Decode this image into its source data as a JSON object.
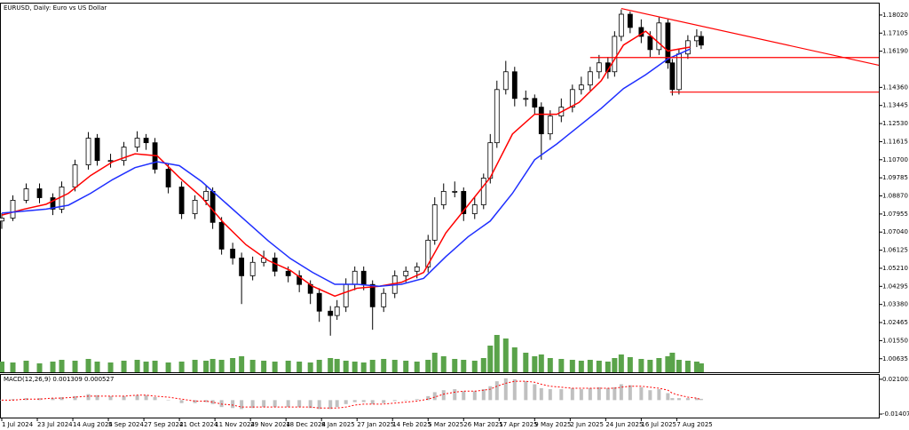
{
  "chart_data": [
    {
      "type": "candlestick",
      "title": "EURUSD, Daily:  Euro vs US Dollar",
      "x": [
        0,
        5,
        11,
        17,
        23,
        27,
        33,
        39,
        43,
        49,
        55,
        61,
        65,
        69,
        75,
        81,
        87,
        92,
        95,
        99,
        104,
        108,
        113,
        118,
        123,
        129,
        134,
        139,
        143,
        148,
        151,
        155,
        159,
        163,
        167,
        172,
        177,
        182,
        187,
        192,
        195,
        199,
        204,
        208,
        213,
        217,
        220,
        223,
        227,
        231,
        236,
        240,
        243,
        247,
        252,
        257,
        261,
        265,
        269,
        273,
        276,
        279,
        283,
        288,
        292,
        296,
        300,
        302,
        305,
        309,
        313,
        315
      ],
      "open": [
        1.076,
        1.0775,
        1.0865,
        1.0923,
        1.0878,
        1.082,
        1.0932,
        1.1044,
        1.1179,
        1.1066,
        1.1066,
        1.1134,
        1.1179,
        1.1156,
        1.1022,
        1.0932,
        1.0797,
        1.0865,
        1.091,
        1.0753,
        1.0618,
        1.0573,
        1.0483,
        1.0551,
        1.0573,
        1.0506,
        1.0483,
        1.0439,
        1.0394,
        1.0304,
        1.0282,
        1.0326,
        1.0439,
        1.0506,
        1.0439,
        1.0326,
        1.0394,
        1.0483,
        1.0506,
        1.0528,
        1.0663,
        1.0842,
        1.091,
        1.091,
        1.0797,
        1.0842,
        1.0977,
        1.1156,
        1.1425,
        1.1515,
        1.138,
        1.138,
        1.1336,
        1.1201,
        1.1291,
        1.1336,
        1.1425,
        1.1448,
        1.1515,
        1.156,
        1.1515,
        1.1694,
        1.1806,
        1.1739,
        1.1694,
        1.1627,
        1.1762,
        1.156,
        1.1425,
        1.1605,
        1.1672,
        1.1694
      ],
      "high": [
        1.08,
        1.089,
        1.095,
        1.095,
        1.09,
        1.096,
        1.107,
        1.121,
        1.12,
        1.11,
        1.116,
        1.1214,
        1.12,
        1.118,
        1.105,
        1.096,
        1.089,
        1.094,
        1.093,
        1.078,
        1.065,
        1.06,
        1.058,
        1.061,
        1.06,
        1.053,
        1.051,
        1.046,
        1.042,
        1.033,
        1.036,
        1.047,
        1.053,
        1.053,
        1.046,
        1.042,
        1.051,
        1.053,
        1.055,
        1.069,
        1.088,
        1.095,
        1.096,
        1.093,
        1.088,
        1.1,
        1.12,
        1.147,
        1.157,
        1.154,
        1.142,
        1.14,
        1.136,
        1.132,
        1.138,
        1.145,
        1.149,
        1.154,
        1.16,
        1.159,
        1.172,
        1.183,
        1.182,
        1.178,
        1.172,
        1.179,
        1.178,
        1.158,
        1.163,
        1.17,
        1.173,
        1.172
      ],
      "low": [
        1.072,
        1.076,
        1.085,
        1.085,
        1.079,
        1.08,
        1.091,
        1.102,
        1.104,
        1.103,
        1.104,
        1.111,
        1.112,
        1.1,
        1.09,
        1.077,
        1.077,
        1.084,
        1.072,
        1.059,
        1.054,
        1.034,
        1.046,
        1.053,
        1.048,
        1.045,
        1.04,
        1.034,
        1.025,
        1.018,
        1.026,
        1.03,
        1.041,
        1.041,
        1.021,
        1.03,
        1.037,
        1.045,
        1.047,
        1.05,
        1.064,
        1.082,
        1.088,
        1.076,
        1.077,
        1.082,
        1.095,
        1.113,
        1.14,
        1.134,
        1.134,
        1.13,
        1.107,
        1.117,
        1.126,
        1.131,
        1.14,
        1.142,
        1.148,
        1.148,
        1.149,
        1.167,
        1.171,
        1.166,
        1.159,
        1.16,
        1.153,
        1.1395,
        1.14,
        1.158,
        1.164,
        1.163
      ],
      "close": [
        1.0775,
        1.0865,
        1.0923,
        1.0878,
        1.082,
        1.0932,
        1.1044,
        1.1179,
        1.1066,
        1.1066,
        1.1134,
        1.1179,
        1.1156,
        1.1022,
        1.0932,
        1.0797,
        1.0865,
        1.091,
        1.0753,
        1.0618,
        1.0573,
        1.0483,
        1.0551,
        1.0573,
        1.0506,
        1.0483,
        1.0439,
        1.0394,
        1.0304,
        1.0282,
        1.0326,
        1.0439,
        1.0506,
        1.0439,
        1.0326,
        1.0394,
        1.0483,
        1.0506,
        1.0528,
        1.0663,
        1.0842,
        1.091,
        1.091,
        1.0797,
        1.0842,
        1.0977,
        1.1156,
        1.1425,
        1.1515,
        1.138,
        1.138,
        1.1336,
        1.1201,
        1.1291,
        1.1336,
        1.1425,
        1.1448,
        1.1515,
        1.156,
        1.1515,
        1.1694,
        1.1806,
        1.1739,
        1.1694,
        1.1627,
        1.1762,
        1.156,
        1.1425,
        1.1605,
        1.1672,
        1.1694,
        1.165
      ],
      "volume": [
        12,
        11,
        13,
        10,
        12,
        14,
        13,
        15,
        12,
        11,
        13,
        14,
        12,
        13,
        11,
        12,
        14,
        13,
        15,
        14,
        16,
        18,
        14,
        13,
        12,
        13,
        12,
        11,
        14,
        16,
        15,
        13,
        12,
        11,
        14,
        15,
        14,
        13,
        12,
        14,
        22,
        18,
        15,
        14,
        13,
        16,
        30,
        42,
        38,
        28,
        22,
        18,
        20,
        16,
        15,
        14,
        13,
        14,
        13,
        12,
        16,
        20,
        17,
        15,
        14,
        16,
        18,
        22,
        14,
        13,
        12,
        10
      ],
      "volume_lim": [
        0,
        100
      ],
      "volume_color": "#5aa34a",
      "series": [
        {
          "color": "#ff0000",
          "x": [
            0,
            10,
            20,
            30,
            40,
            50,
            60,
            70,
            80,
            90,
            100,
            110,
            120,
            130,
            140,
            150,
            160,
            170,
            180,
            190,
            200,
            210,
            220,
            230,
            240,
            250,
            260,
            270,
            280,
            290,
            300,
            310
          ],
          "values": [
            1.079,
            1.082,
            1.0845,
            1.09,
            1.099,
            1.106,
            1.11,
            1.109,
            1.098,
            1.088,
            1.075,
            1.064,
            1.056,
            1.051,
            1.043,
            1.038,
            1.042,
            1.043,
            1.045,
            1.05,
            1.07,
            1.084,
            1.098,
            1.12,
            1.13,
            1.13,
            1.136,
            1.147,
            1.165,
            1.172,
            1.162,
            1.164
          ]
        },
        {
          "color": "#1f2fff",
          "x": [
            0,
            10,
            20,
            30,
            40,
            50,
            60,
            70,
            80,
            90,
            100,
            110,
            120,
            130,
            140,
            150,
            160,
            170,
            180,
            190,
            200,
            210,
            220,
            230,
            240,
            250,
            260,
            270,
            280,
            290,
            300,
            310
          ],
          "values": [
            1.08,
            1.081,
            1.082,
            1.084,
            1.09,
            1.097,
            1.103,
            1.106,
            1.104,
            1.096,
            1.086,
            1.076,
            1.066,
            1.057,
            1.05,
            1.044,
            1.044,
            1.043,
            1.044,
            1.047,
            1.058,
            1.068,
            1.076,
            1.09,
            1.107,
            1.115,
            1.124,
            1.133,
            1.143,
            1.15,
            1.158,
            1.163
          ]
        }
      ],
      "lines": [
        {
          "color": "#ff0000",
          "x": [
            279,
            395
          ],
          "values": [
            1.1835,
            1.1548
          ]
        },
        {
          "color": "#ff0000",
          "x": [
            265,
            395
          ],
          "values": [
            1.1587,
            1.1587
          ]
        },
        {
          "color": "#ff0000",
          "x": [
            301,
            395
          ],
          "values": [
            1.1412,
            1.1412
          ]
        }
      ],
      "xlim": [
        0,
        395
      ],
      "ylim": [
        0.9995,
        1.186
      ],
      "xticks": [
        {
          "value": 0,
          "label": "1 Jul 2024"
        },
        {
          "value": 16,
          "label": "23 Jul 2024"
        },
        {
          "value": 32,
          "label": "14 Aug 2024"
        },
        {
          "value": 48,
          "label": "5 Sep 2024"
        },
        {
          "value": 64,
          "label": "27 Sep 2024"
        },
        {
          "value": 80,
          "label": "21 Oct 2024"
        },
        {
          "value": 96,
          "label": "11 Nov 2024"
        },
        {
          "value": 112,
          "label": "29 Nov 2024"
        },
        {
          "value": 128,
          "label": "18 Dec 2024"
        },
        {
          "value": 144,
          "label": "8 Jan 2025"
        },
        {
          "value": 160,
          "label": "27 Jan 2025"
        },
        {
          "value": 176,
          "label": "14 Feb 2025"
        },
        {
          "value": 192,
          "label": "5 Mar 2025"
        },
        {
          "value": 208,
          "label": "26 Mar 2025"
        },
        {
          "value": 224,
          "label": "17 Apr 2025"
        },
        {
          "value": 240,
          "label": "9 May 2025"
        },
        {
          "value": 256,
          "label": "2 Jun 2025"
        },
        {
          "value": 272,
          "label": "24 Jun 2025"
        },
        {
          "value": 288,
          "label": "16 Jul 2025"
        },
        {
          "value": 304,
          "label": "7 Aug 2025"
        }
      ],
      "yticks": [
        {
          "value": 1.1802,
          "label": "1.18020"
        },
        {
          "value": 1.17105,
          "label": "1.17105"
        },
        {
          "value": 1.1619,
          "label": "1.16190"
        },
        {
          "value": 1.1436,
          "label": "1.14360"
        },
        {
          "value": 1.13445,
          "label": "1.13445"
        },
        {
          "value": 1.1253,
          "label": "1.12530"
        },
        {
          "value": 1.11615,
          "label": "1.11615"
        },
        {
          "value": 1.107,
          "label": "1.10700"
        },
        {
          "value": 1.09785,
          "label": "1.09785"
        },
        {
          "value": 1.0887,
          "label": "1.08870"
        },
        {
          "value": 1.07955,
          "label": "1.07955"
        },
        {
          "value": 1.0704,
          "label": "1.07040"
        },
        {
          "value": 1.06125,
          "label": "1.06125"
        },
        {
          "value": 1.0521,
          "label": "1.05210"
        },
        {
          "value": 1.04295,
          "label": "1.04295"
        },
        {
          "value": 1.0338,
          "label": "1.03380"
        },
        {
          "value": 1.02465,
          "label": "1.02465"
        },
        {
          "value": 1.0155,
          "label": "1.01550"
        },
        {
          "value": 1.00635,
          "label": "1.00635"
        }
      ]
    },
    {
      "type": "macd",
      "title": "MACD(12,26,9) 0.001309 0.000527",
      "values": [
        0.0,
        0.001,
        0.002,
        0.002,
        0.002,
        0.003,
        0.004,
        0.006,
        0.005,
        0.004,
        0.004,
        0.005,
        0.005,
        0.003,
        0.0,
        -0.003,
        -0.003,
        -0.002,
        -0.004,
        -0.007,
        -0.008,
        -0.009,
        -0.008,
        -0.007,
        -0.007,
        -0.007,
        -0.007,
        -0.008,
        -0.009,
        -0.009,
        -0.007,
        -0.004,
        -0.002,
        -0.002,
        -0.004,
        -0.003,
        -0.001,
        0.0,
        0.001,
        0.004,
        0.008,
        0.01,
        0.011,
        0.009,
        0.009,
        0.011,
        0.014,
        0.019,
        0.022,
        0.021,
        0.019,
        0.016,
        0.012,
        0.011,
        0.011,
        0.012,
        0.011,
        0.012,
        0.013,
        0.012,
        0.013,
        0.016,
        0.015,
        0.013,
        0.01,
        0.011,
        0.007,
        0.002,
        0.002,
        0.002,
        0.002,
        0.0013
      ],
      "signal": [
        0.0,
        0.0,
        0.001,
        0.001,
        0.002,
        0.002,
        0.003,
        0.004,
        0.004,
        0.004,
        0.004,
        0.005,
        0.005,
        0.004,
        0.003,
        0.001,
        -0.001,
        -0.001,
        -0.002,
        -0.004,
        -0.005,
        -0.007,
        -0.007,
        -0.007,
        -0.007,
        -0.007,
        -0.007,
        -0.007,
        -0.008,
        -0.008,
        -0.008,
        -0.007,
        -0.005,
        -0.004,
        -0.004,
        -0.004,
        -0.003,
        -0.002,
        -0.001,
        0.001,
        0.003,
        0.006,
        0.008,
        0.009,
        0.009,
        0.01,
        0.011,
        0.014,
        0.017,
        0.019,
        0.019,
        0.018,
        0.016,
        0.014,
        0.013,
        0.012,
        0.012,
        0.012,
        0.012,
        0.012,
        0.012,
        0.013,
        0.014,
        0.014,
        0.013,
        0.012,
        0.01,
        0.007,
        0.005,
        0.003,
        0.002,
        0.0005
      ],
      "color": "#c0c0c0",
      "signal_color": "#ff0000",
      "ylim": [
        -0.0176,
        0.0254
      ],
      "yticks": [
        0.021003,
        -0.014073
      ]
    }
  ]
}
